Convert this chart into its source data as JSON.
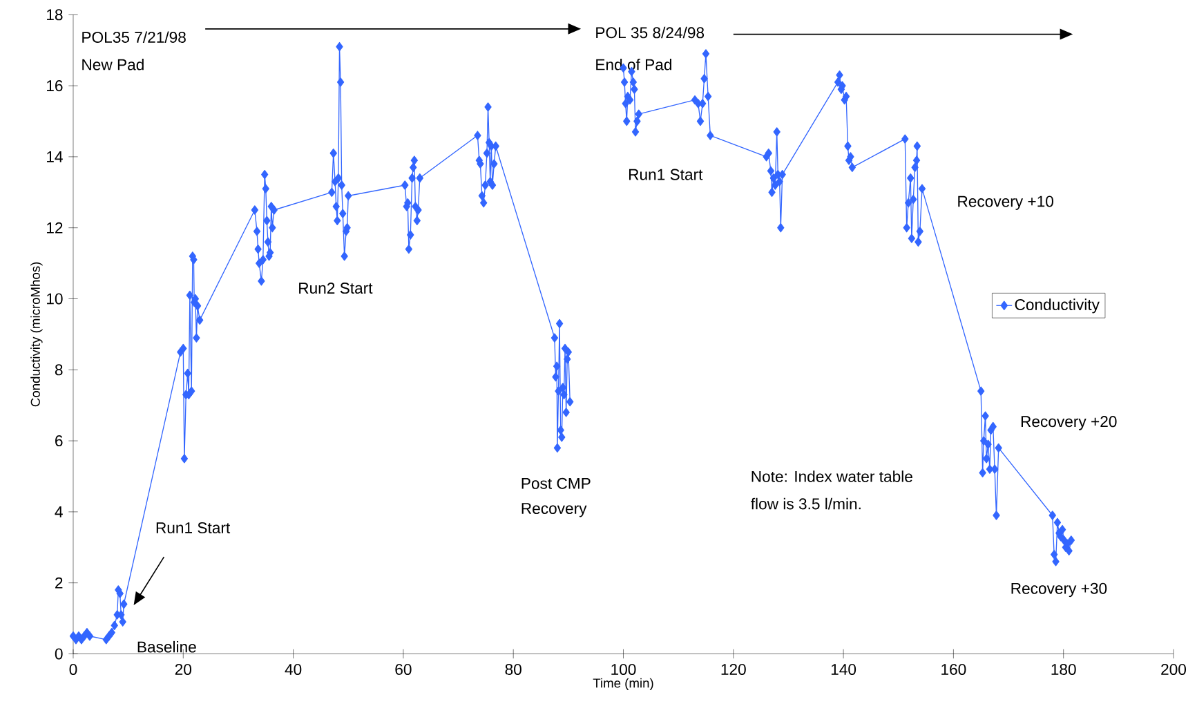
{
  "chart_data": {
    "type": "line",
    "xlabel": "Time (min)",
    "ylabel": "Conductivity (microMhos)",
    "xlim": [
      0,
      200
    ],
    "xticks": [
      0,
      20,
      40,
      60,
      80,
      100,
      120,
      140,
      160,
      180,
      200
    ],
    "ylim": [
      0,
      18
    ],
    "yticks": [
      0,
      2,
      4,
      6,
      8,
      10,
      12,
      14,
      16,
      18
    ],
    "grid": false,
    "legend": "right",
    "marker": "diamond",
    "line_style": "solid",
    "annotations": [
      "POL35 7/21/98",
      "New Pad",
      "POL 35 8/24/98",
      "End of Pad",
      "Run1 Start",
      "Baseline",
      "Run2 Start",
      "Post CMP",
      "Recovery",
      "Run1 Start",
      "Note:  Index water table",
      "flow is 3.5 l/min.",
      "Recovery +10",
      "Recovery +20",
      "Recovery +30"
    ],
    "series": [
      {
        "name": "Conductivity",
        "color": "#3366ff",
        "x": [
          0,
          0.5,
          1,
          1.5,
          2,
          2.5,
          3,
          6,
          6.5,
          7,
          7.5,
          8,
          8.2,
          8.5,
          8.7,
          9,
          9.2,
          19.5,
          20,
          20.2,
          20.5,
          20.8,
          21,
          21.2,
          21.5,
          21.7,
          21.9,
          22,
          22.2,
          22.4,
          22.6,
          23,
          33,
          33.4,
          33.6,
          33.8,
          34.2,
          34.5,
          34.8,
          35,
          35.2,
          35.4,
          35.6,
          35.8,
          36,
          36.2,
          36.5,
          47,
          47.3,
          47.6,
          47.8,
          48,
          48.2,
          48.4,
          48.6,
          48.8,
          49,
          49.3,
          49.6,
          49.8,
          50,
          60.3,
          60.6,
          60.8,
          61,
          61.3,
          61.6,
          61.8,
          62,
          62.2,
          62.5,
          62.7,
          63,
          73.5,
          73.8,
          74,
          74.3,
          74.6,
          74.9,
          75.2,
          75.4,
          75.6,
          75.8,
          76,
          76.2,
          76.5,
          76.8,
          87.5,
          87.7,
          87.9,
          88,
          88.2,
          88.4,
          88.6,
          88.8,
          89,
          89.2,
          89.4,
          89.6,
          89.8,
          90,
          90.3,
          95,
          100,
          100.2,
          100.4,
          100.6,
          100.8,
          101.2,
          101.5,
          101.8,
          102,
          102.2,
          102.5,
          102.8,
          113,
          113.6,
          114,
          114.4,
          114.7,
          115,
          115.4,
          115.8,
          126,
          126.4,
          126.8,
          127,
          127.3,
          127.6,
          127.9,
          128.1,
          128.4,
          128.6,
          128.9,
          139,
          139.3,
          139.6,
          139.8,
          140.2,
          140.5,
          140.8,
          141,
          141.3,
          141.6,
          151.2,
          151.5,
          151.8,
          152.2,
          152.4,
          152.7,
          153,
          153.3,
          153.4,
          153.6,
          153.9,
          154.3,
          165,
          165.3,
          165.5,
          165.8,
          166,
          166.3,
          166.6,
          166.8,
          167.2,
          167.5,
          167.8,
          168.2,
          178,
          178.3,
          178.6,
          178.9,
          179.2,
          179.5,
          179.8,
          180.1,
          180.4,
          180.7,
          181,
          181.4
        ],
        "values": [
          0.5,
          0.4,
          0.5,
          0.4,
          0.5,
          0.6,
          0.5,
          0.4,
          0.5,
          0.6,
          0.8,
          1.1,
          1.8,
          1.7,
          1.1,
          0.9,
          1.4,
          8.5,
          8.6,
          5.5,
          7.3,
          7.9,
          7.3,
          10.1,
          7.4,
          11.2,
          11.1,
          9.9,
          10.0,
          8.9,
          9.8,
          9.4,
          12.5,
          11.9,
          11.4,
          11.0,
          10.5,
          11.1,
          13.5,
          13.1,
          12.2,
          11.6,
          11.2,
          11.3,
          12.6,
          12.0,
          12.5,
          13.0,
          14.1,
          13.3,
          12.6,
          12.2,
          13.4,
          17.1,
          16.1,
          13.2,
          12.4,
          11.2,
          11.9,
          12.0,
          12.9,
          13.2,
          12.6,
          12.7,
          11.4,
          11.8,
          13.4,
          13.7,
          13.9,
          12.6,
          12.2,
          12.5,
          13.4,
          14.6,
          13.9,
          13.8,
          12.9,
          12.7,
          13.2,
          14.1,
          15.4,
          14.4,
          13.3,
          14.3,
          13.2,
          13.8,
          14.3,
          8.9,
          7.8,
          8.1,
          5.8,
          7.4,
          9.3,
          6.3,
          6.1,
          7.5,
          7.3,
          8.6,
          6.8,
          8.3,
          8.5,
          7.1,
          null,
          16.5,
          16.1,
          15.5,
          15.0,
          15.7,
          15.6,
          16.4,
          16.1,
          15.9,
          14.7,
          15.0,
          15.2,
          15.6,
          15.5,
          15.0,
          15.5,
          16.2,
          16.9,
          15.7,
          14.6,
          14.0,
          14.1,
          13.6,
          13.0,
          13.4,
          13.2,
          14.7,
          13.5,
          13.3,
          12.0,
          13.5,
          16.1,
          16.3,
          15.9,
          16.0,
          15.6,
          15.7,
          14.3,
          13.9,
          14.0,
          13.7,
          14.5,
          12.0,
          12.7,
          13.4,
          11.7,
          12.8,
          13.7,
          13.9,
          14.3,
          11.6,
          11.9,
          13.1,
          7.4,
          5.1,
          6.0,
          6.7,
          5.5,
          5.9,
          5.2,
          6.3,
          6.4,
          5.2,
          3.9,
          5.8,
          3.9,
          2.8,
          2.6,
          3.7,
          3.4,
          3.3,
          3.5,
          3.2,
          3.0,
          3.1,
          2.9,
          3.2
        ]
      }
    ]
  }
}
